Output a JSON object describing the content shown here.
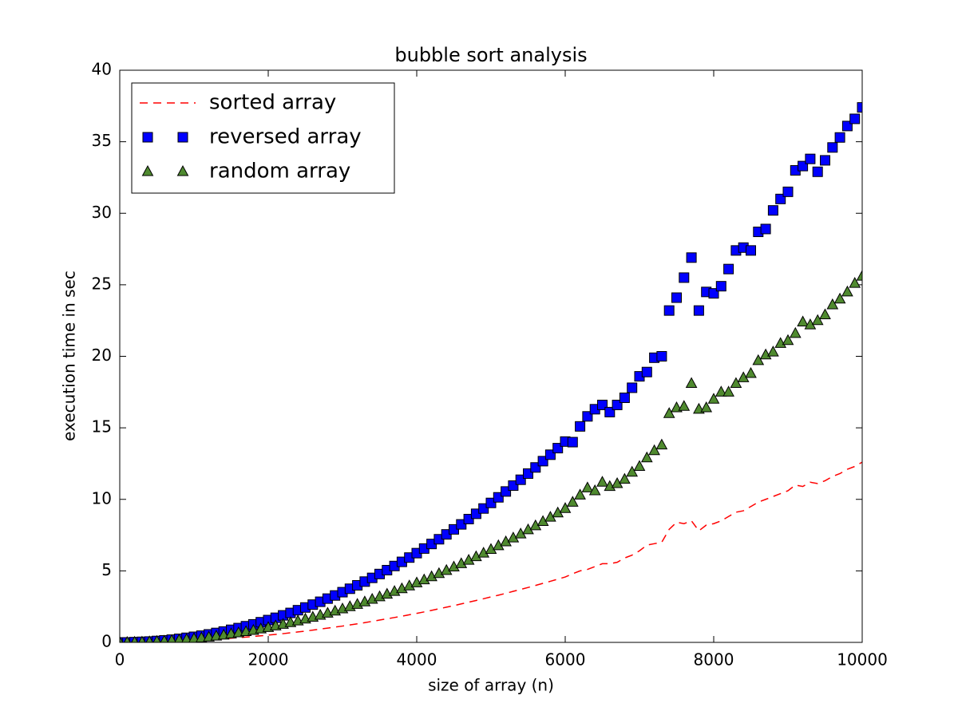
{
  "chart_data": {
    "type": "line",
    "title": "bubble sort analysis",
    "x_label": "size of array (n)",
    "y_label": "execution time in sec",
    "x": [
      0,
      100,
      200,
      300,
      400,
      500,
      600,
      700,
      800,
      900,
      1000,
      1100,
      1200,
      1300,
      1400,
      1500,
      1600,
      1700,
      1800,
      1900,
      2000,
      2100,
      2200,
      2300,
      2400,
      2500,
      2600,
      2700,
      2800,
      2900,
      3000,
      3100,
      3200,
      3300,
      3400,
      3500,
      3600,
      3700,
      3800,
      3900,
      4000,
      4100,
      4200,
      4300,
      4400,
      4500,
      4600,
      4700,
      4800,
      4900,
      5000,
      5100,
      5200,
      5300,
      5400,
      5500,
      5600,
      5700,
      5800,
      5900,
      6000,
      6100,
      6200,
      6300,
      6400,
      6500,
      6600,
      6700,
      6800,
      6900,
      7000,
      7100,
      7200,
      7300,
      7400,
      7500,
      7600,
      7700,
      7800,
      7900,
      8000,
      8100,
      8200,
      8300,
      8400,
      8500,
      8600,
      8700,
      8800,
      8900,
      9000,
      9100,
      9200,
      9300,
      9400,
      9500,
      9600,
      9700,
      9800,
      9900,
      10000
    ],
    "series": [
      {
        "name": "sorted array",
        "color": "#ff0000",
        "linestyle": "dashed",
        "marker": "none",
        "values": [
          0,
          0,
          0.01,
          0.01,
          0.02,
          0.03,
          0.05,
          0.06,
          0.08,
          0.1,
          0.13,
          0.15,
          0.18,
          0.21,
          0.25,
          0.29,
          0.33,
          0.37,
          0.41,
          0.46,
          0.51,
          0.56,
          0.61,
          0.67,
          0.73,
          0.79,
          0.86,
          0.93,
          1.0,
          1.07,
          1.14,
          1.22,
          1.3,
          1.38,
          1.47,
          1.56,
          1.65,
          1.74,
          1.83,
          1.93,
          2.03,
          2.13,
          2.24,
          2.35,
          2.46,
          2.57,
          2.69,
          2.81,
          2.93,
          3.05,
          3.18,
          3.3,
          3.43,
          3.57,
          3.7,
          3.84,
          3.98,
          4.13,
          4.27,
          4.42,
          4.57,
          4.8,
          5.0,
          5.1,
          5.3,
          5.5,
          5.5,
          5.6,
          5.9,
          6.1,
          6.4,
          6.8,
          6.9,
          7.0,
          7.9,
          8.4,
          8.3,
          8.5,
          7.8,
          8.2,
          8.3,
          8.5,
          8.8,
          9.1,
          9.2,
          9.5,
          9.8,
          10.0,
          10.2,
          10.4,
          10.6,
          11.0,
          10.9,
          11.2,
          11.1,
          11.3,
          11.6,
          11.8,
          12.1,
          12.3,
          12.6
        ]
      },
      {
        "name": "reversed array",
        "color": "#0000ff",
        "linestyle": "none",
        "marker": "square",
        "values": [
          0,
          0,
          0.02,
          0.04,
          0.06,
          0.1,
          0.14,
          0.19,
          0.25,
          0.32,
          0.39,
          0.47,
          0.56,
          0.66,
          0.76,
          0.88,
          1.0,
          1.13,
          1.26,
          1.41,
          1.56,
          1.72,
          1.89,
          2.06,
          2.25,
          2.44,
          2.64,
          2.84,
          3.06,
          3.28,
          3.51,
          3.75,
          3.99,
          4.25,
          4.51,
          4.78,
          5.05,
          5.34,
          5.63,
          5.93,
          6.24,
          6.56,
          6.88,
          7.21,
          7.55,
          7.9,
          8.25,
          8.62,
          8.99,
          9.36,
          9.75,
          10.14,
          10.55,
          10.96,
          11.37,
          11.8,
          12.23,
          12.67,
          13.12,
          13.58,
          14.04,
          14.0,
          15.1,
          15.8,
          16.3,
          16.6,
          16.1,
          16.6,
          17.1,
          17.8,
          18.6,
          18.9,
          19.9,
          20.0,
          23.2,
          24.1,
          25.5,
          26.9,
          23.2,
          24.5,
          24.4,
          24.9,
          26.1,
          27.4,
          27.6,
          27.4,
          28.7,
          28.9,
          30.2,
          31.0,
          31.5,
          33.0,
          33.3,
          33.8,
          32.9,
          33.7,
          34.6,
          35.3,
          36.1,
          36.6,
          37.4
        ]
      },
      {
        "name": "random array",
        "color": "#4f8a2f",
        "linestyle": "none",
        "marker": "triangle",
        "values": [
          0,
          0,
          0.01,
          0.02,
          0.04,
          0.07,
          0.09,
          0.13,
          0.17,
          0.21,
          0.26,
          0.31,
          0.37,
          0.44,
          0.51,
          0.59,
          0.67,
          0.75,
          0.84,
          0.94,
          1.04,
          1.15,
          1.26,
          1.38,
          1.5,
          1.63,
          1.76,
          1.9,
          2.04,
          2.19,
          2.34,
          2.5,
          2.66,
          2.83,
          3.01,
          3.19,
          3.37,
          3.56,
          3.75,
          3.95,
          4.16,
          4.37,
          4.59,
          4.81,
          5.03,
          5.27,
          5.5,
          5.74,
          5.99,
          6.24,
          6.5,
          6.76,
          7.03,
          7.3,
          7.58,
          7.87,
          8.15,
          8.45,
          8.75,
          9.05,
          9.36,
          9.8,
          10.3,
          10.8,
          10.6,
          11.2,
          10.9,
          11.1,
          11.4,
          11.9,
          12.3,
          12.9,
          13.4,
          13.8,
          16.0,
          16.4,
          16.5,
          18.1,
          16.3,
          16.4,
          17.0,
          17.5,
          17.5,
          18.1,
          18.5,
          18.8,
          19.7,
          20.1,
          20.3,
          20.9,
          21.1,
          21.6,
          22.4,
          22.2,
          22.5,
          22.9,
          23.6,
          24.0,
          24.5,
          25.1,
          25.6
        ]
      }
    ],
    "xlim": [
      0,
      10000
    ],
    "xticks": [
      0,
      2000,
      4000,
      6000,
      8000,
      10000
    ],
    "ylim": [
      0,
      40
    ],
    "yticks": [
      0,
      5,
      10,
      15,
      20,
      25,
      30,
      35,
      40
    ],
    "grid": false,
    "legend": "upper left"
  }
}
